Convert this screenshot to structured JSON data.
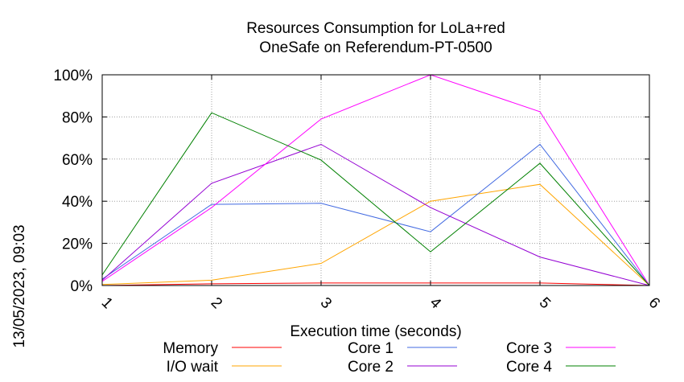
{
  "chart_data": {
    "type": "line",
    "title": "Resources Consumption for LoLa+red",
    "subtitle": "OneSafe on Referendum-PT-0500",
    "xlabel": "Execution time (seconds)",
    "ylabel": "",
    "side_label": "13/05/2023, 09:03",
    "x": [
      1,
      2,
      3,
      4,
      5,
      6
    ],
    "xticks": [
      "1",
      "2",
      "3",
      "4",
      "5",
      "6"
    ],
    "yticks": [
      "0%",
      "20%",
      "40%",
      "60%",
      "80%",
      "100%"
    ],
    "ylim": [
      0,
      100
    ],
    "xlim": [
      1,
      6
    ],
    "grid": true,
    "legend_position": "bottom",
    "series": [
      {
        "name": "Memory",
        "color": "#ff0000",
        "values": [
          0,
          0.8,
          1.2,
          1.2,
          1.2,
          0
        ]
      },
      {
        "name": "I/O wait",
        "color": "#ffa500",
        "values": [
          0.5,
          2.5,
          10.5,
          40,
          48,
          0
        ]
      },
      {
        "name": "Core 1",
        "color": "#4169e1",
        "values": [
          3,
          38.5,
          39,
          25.5,
          67,
          0
        ]
      },
      {
        "name": "Core 2",
        "color": "#9400d3",
        "values": [
          2.5,
          48.5,
          67,
          37,
          13.5,
          0
        ]
      },
      {
        "name": "Core 3",
        "color": "#ff00ff",
        "values": [
          2,
          37,
          79,
          100,
          82.5,
          0
        ]
      },
      {
        "name": "Core 4",
        "color": "#008000",
        "values": [
          5,
          82,
          59.5,
          16,
          58,
          0
        ]
      }
    ]
  }
}
